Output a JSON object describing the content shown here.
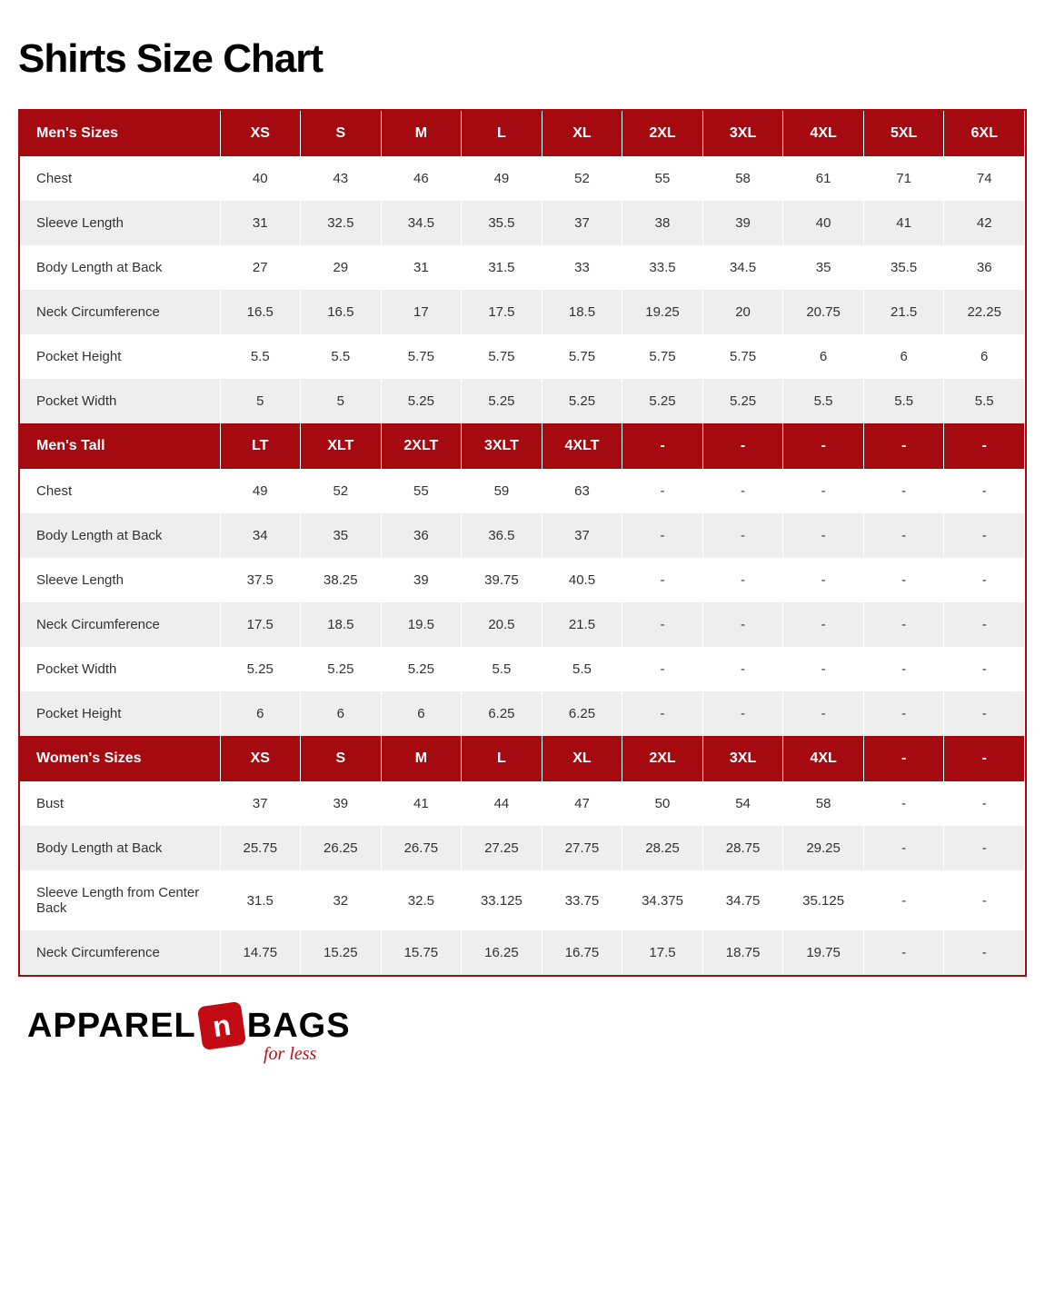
{
  "title": "Shirts Size Chart",
  "colors": {
    "header_bg": "#a40a10",
    "header_text": "#ffffff",
    "row_odd_bg": "#ffffff",
    "row_even_bg": "#eeeeee",
    "text": "#333333",
    "border": "#a40a10"
  },
  "sections": [
    {
      "header": [
        "Men's Sizes",
        "XS",
        "S",
        "M",
        "L",
        "XL",
        "2XL",
        "3XL",
        "4XL",
        "5XL",
        "6XL"
      ],
      "rows": [
        [
          "Chest",
          "40",
          "43",
          "46",
          "49",
          "52",
          "55",
          "58",
          "61",
          "71",
          "74"
        ],
        [
          "Sleeve Length",
          "31",
          "32.5",
          "34.5",
          "35.5",
          "37",
          "38",
          "39",
          "40",
          "41",
          "42"
        ],
        [
          "Body Length at Back",
          "27",
          "29",
          "31",
          "31.5",
          "33",
          "33.5",
          "34.5",
          "35",
          "35.5",
          "36"
        ],
        [
          "Neck Circumference",
          "16.5",
          "16.5",
          "17",
          "17.5",
          "18.5",
          "19.25",
          "20",
          "20.75",
          "21.5",
          "22.25"
        ],
        [
          "Pocket Height",
          "5.5",
          "5.5",
          "5.75",
          "5.75",
          "5.75",
          "5.75",
          "5.75",
          "6",
          "6",
          "6"
        ],
        [
          "Pocket Width",
          "5",
          "5",
          "5.25",
          "5.25",
          "5.25",
          "5.25",
          "5.25",
          "5.5",
          "5.5",
          "5.5"
        ]
      ]
    },
    {
      "header": [
        "Men's Tall",
        "LT",
        "XLT",
        "2XLT",
        "3XLT",
        "4XLT",
        "-",
        "-",
        "-",
        "-",
        "-"
      ],
      "rows": [
        [
          "Chest",
          "49",
          "52",
          "55",
          "59",
          "63",
          "-",
          "-",
          "-",
          "-",
          "-"
        ],
        [
          "Body Length at Back",
          "34",
          "35",
          "36",
          "36.5",
          "37",
          "-",
          "-",
          "-",
          "-",
          "-"
        ],
        [
          "Sleeve Length",
          "37.5",
          "38.25",
          "39",
          "39.75",
          "40.5",
          "-",
          "-",
          "-",
          "-",
          "-"
        ],
        [
          "Neck Circumference",
          "17.5",
          "18.5",
          "19.5",
          "20.5",
          "21.5",
          "-",
          "-",
          "-",
          "-",
          "-"
        ],
        [
          "Pocket Width",
          "5.25",
          "5.25",
          "5.25",
          "5.5",
          "5.5",
          "-",
          "-",
          "-",
          "-",
          "-"
        ],
        [
          "Pocket Height",
          "6",
          "6",
          "6",
          "6.25",
          "6.25",
          "-",
          "-",
          "-",
          "-",
          "-"
        ]
      ]
    },
    {
      "header": [
        "Women's Sizes",
        "XS",
        "S",
        "M",
        "L",
        "XL",
        "2XL",
        "3XL",
        "4XL",
        "-",
        "-"
      ],
      "rows": [
        [
          "Bust",
          "37",
          "39",
          "41",
          "44",
          "47",
          "50",
          "54",
          "58",
          "-",
          "-"
        ],
        [
          "Body Length at Back",
          "25.75",
          "26.25",
          "26.75",
          "27.25",
          "27.75",
          "28.25",
          "28.75",
          "29.25",
          "-",
          "-"
        ],
        [
          "Sleeve Length from Center Back",
          "31.5",
          "32",
          "32.5",
          "33.125",
          "33.75",
          "34.375",
          "34.75",
          "35.125",
          "-",
          "-"
        ],
        [
          "Neck Circumference",
          "14.75",
          "15.25",
          "15.75",
          "16.25",
          "16.75",
          "17.5",
          "18.75",
          "19.75",
          "-",
          "-"
        ]
      ]
    }
  ],
  "logo": {
    "part1": "Apparel",
    "n": "n",
    "part2": "Bags",
    "tagline": "for less"
  }
}
